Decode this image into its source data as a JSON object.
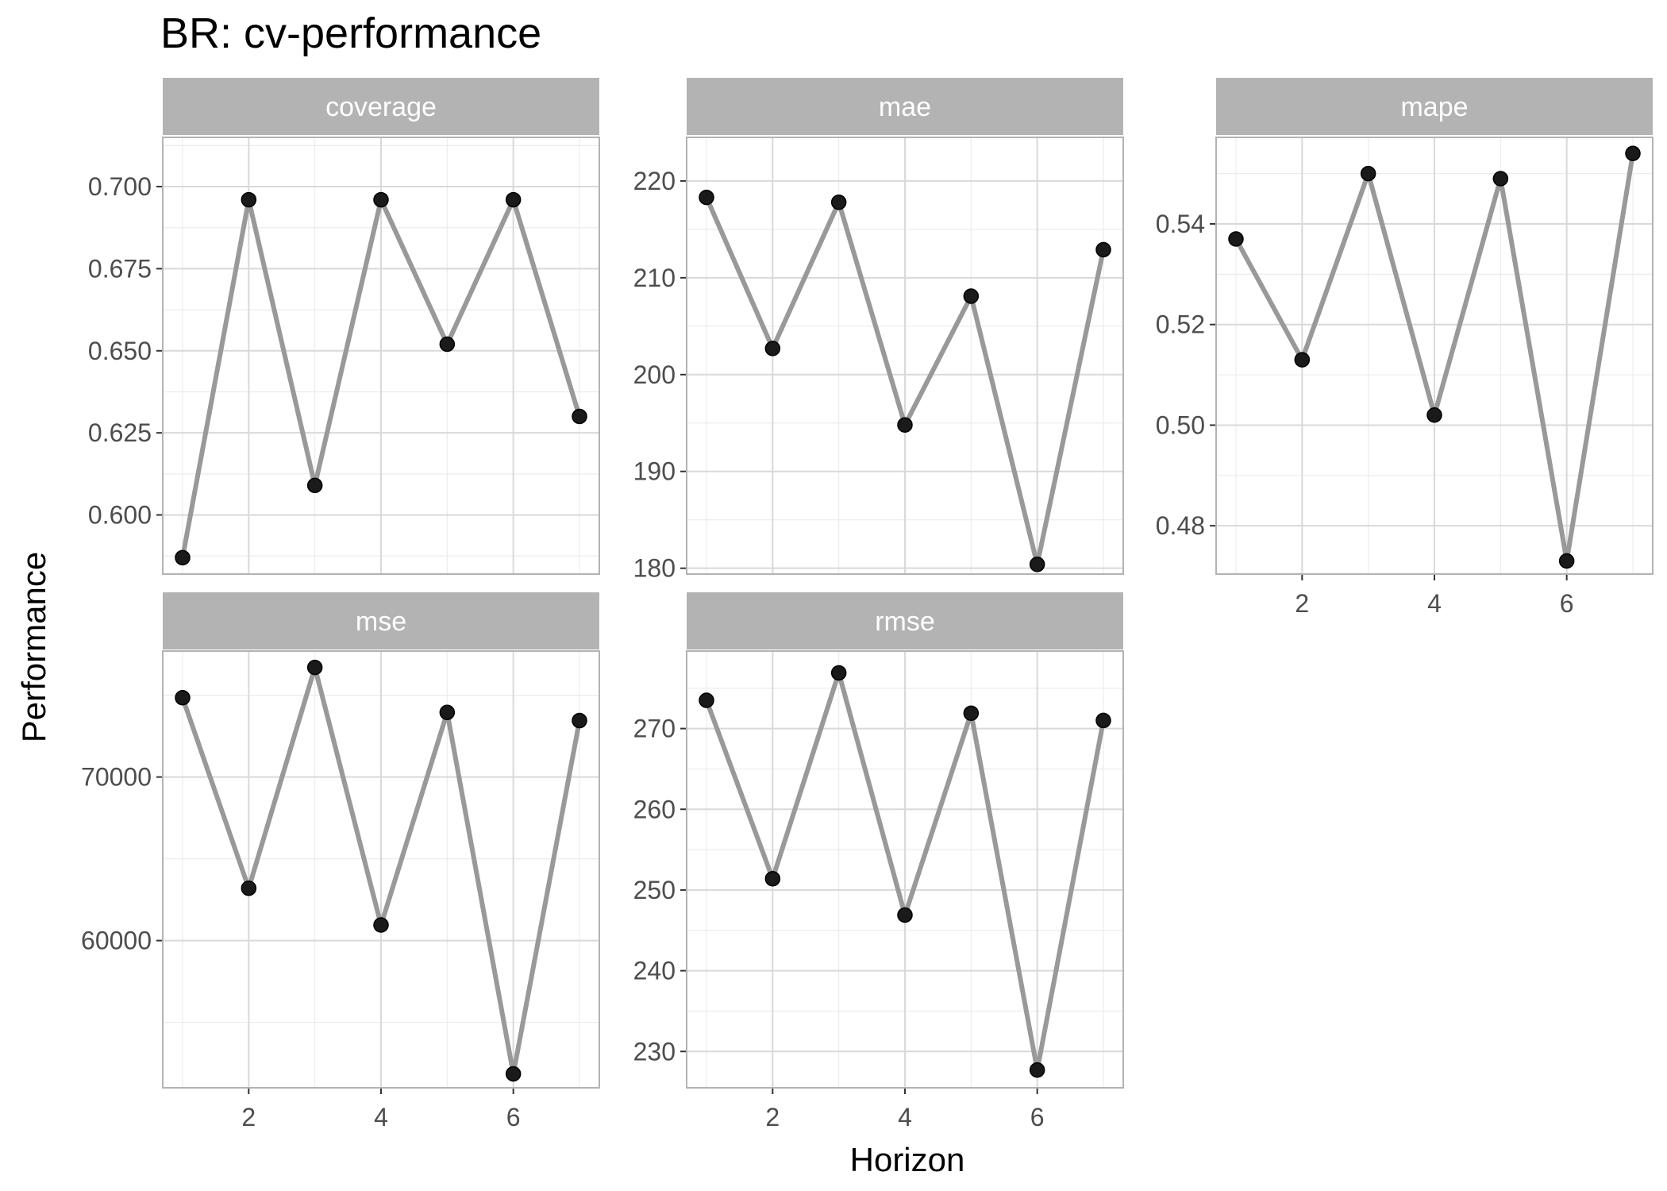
{
  "chart_data": {
    "type": "line",
    "title": "BR: cv-performance",
    "xlabel": "Horizon",
    "ylabel": "Performance",
    "x": [
      1,
      2,
      3,
      4,
      5,
      6,
      7
    ],
    "x_ticks": [
      2,
      4,
      6
    ],
    "grid": true,
    "colors": {
      "line": "#999999",
      "point": "#1a1a1a",
      "strip": "#b3b3b3",
      "grid_major": "#d9d9d9",
      "grid_minor": "#ececec",
      "panel_border": "#b3b3b3"
    },
    "panels": [
      {
        "name": "coverage",
        "values": [
          0.587,
          0.696,
          0.609,
          0.696,
          0.652,
          0.696,
          0.63
        ],
        "ylim": [
          0.582,
          0.715
        ],
        "y_ticks": [
          0.6,
          0.625,
          0.65,
          0.675,
          0.7
        ],
        "y_tick_labels": [
          "0.600",
          "0.625",
          "0.650",
          "0.675",
          "0.700"
        ]
      },
      {
        "name": "mae",
        "values": [
          218.3,
          202.7,
          217.8,
          194.8,
          208.1,
          180.4,
          212.9
        ],
        "ylim": [
          179.4,
          224.5
        ],
        "y_ticks": [
          180,
          190,
          200,
          210,
          220
        ],
        "y_tick_labels": [
          "180",
          "190",
          "200",
          "210",
          "220"
        ]
      },
      {
        "name": "mape",
        "values": [
          0.537,
          0.513,
          0.55,
          0.502,
          0.549,
          0.473,
          0.554
        ],
        "ylim": [
          0.4704,
          0.5572
        ],
        "y_ticks": [
          0.48,
          0.5,
          0.52,
          0.54
        ],
        "y_tick_labels": [
          "0.48",
          "0.50",
          "0.52",
          "0.54"
        ]
      },
      {
        "name": "mse",
        "values": [
          74850,
          63200,
          76700,
          60950,
          73950,
          51850,
          73450
        ],
        "ylim": [
          51000,
          77700
        ],
        "y_ticks": [
          60000,
          70000
        ],
        "y_tick_labels": [
          "60000",
          "70000"
        ]
      },
      {
        "name": "rmse",
        "values": [
          273.5,
          251.4,
          276.9,
          246.9,
          271.9,
          227.7,
          271.0
        ],
        "ylim": [
          225.5,
          279.6
        ],
        "y_ticks": [
          230,
          240,
          250,
          260,
          270
        ],
        "y_tick_labels": [
          "230",
          "240",
          "250",
          "260",
          "270"
        ]
      }
    ]
  }
}
